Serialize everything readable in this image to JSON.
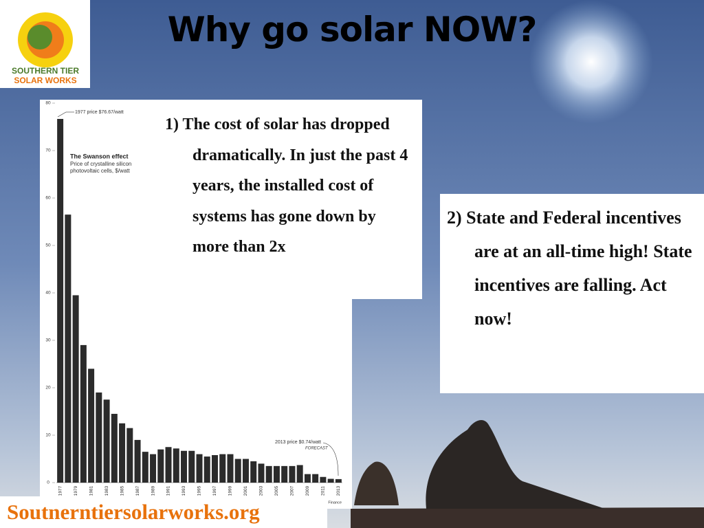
{
  "title": "Why go solar NOW?",
  "logo": {
    "line1": "SOUTHERN TIER",
    "line2": "SOLAR WORKS"
  },
  "points": [
    "1) The cost of solar has dropped dramatically. In just the past 4 years, the installed cost of systems has gone down by more than 2x",
    "2) State and Federal incentives are at an all-time high! State incentives are falling. Act now!"
  ],
  "url": "Soutnerntiersolarworks.org",
  "chart_data": {
    "type": "bar",
    "title": "The Swanson effect",
    "subtitle": "Price of crystalline silicon photovoltaic cells, $/watt",
    "annotations": [
      "1977 price $76.67/watt",
      "2013 price $0.74/watt",
      "FORECAST"
    ],
    "source": "Source: Bloomberg, New Energy Finance",
    "categories": [
      "1977",
      null,
      "1979",
      null,
      "1981",
      null,
      "1983",
      null,
      "1985",
      null,
      "1987",
      null,
      "1989",
      null,
      "1991",
      null,
      "1993",
      null,
      "1995",
      null,
      "1997",
      null,
      "1999",
      null,
      "2001",
      null,
      "2003",
      null,
      "2005",
      null,
      "2007",
      null,
      "2009",
      null,
      "2011",
      null,
      "2013"
    ],
    "values": [
      76.67,
      56.5,
      39.5,
      29,
      24,
      19,
      17.5,
      14.5,
      12.5,
      11.5,
      9,
      6.5,
      6,
      7,
      7.5,
      7.2,
      6.7,
      6.7,
      6,
      5.5,
      5.8,
      6,
      6,
      5,
      5,
      4.5,
      4,
      3.5,
      3.5,
      3.5,
      3.5,
      3.7,
      1.8,
      1.8,
      1.2,
      0.8,
      0.74
    ],
    "color": "#2b2b2b",
    "ylim": [
      0,
      80
    ],
    "yticks": [
      0,
      10,
      20,
      30,
      40,
      50,
      60,
      70,
      80
    ]
  }
}
